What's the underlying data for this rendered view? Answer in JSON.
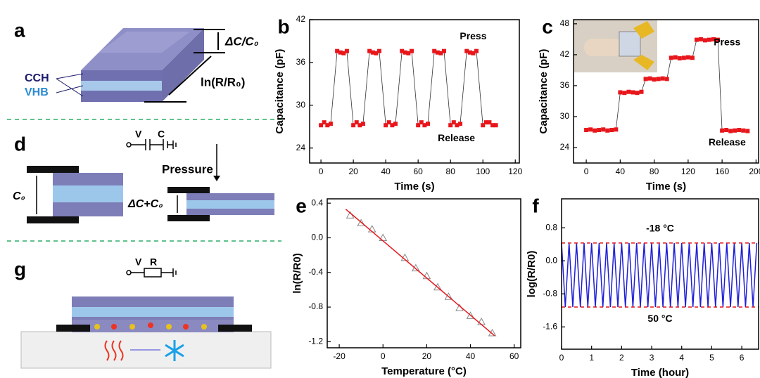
{
  "chart_data": [
    {
      "type": "line",
      "label": "b",
      "xlabel": "Time (s)",
      "ylabel": "Capacitance (pF)",
      "annotations": [
        "Press",
        "Release"
      ],
      "xlim": [
        -7,
        122.5
      ],
      "ylim": [
        21.9,
        42
      ],
      "xticks": [
        0,
        20,
        40,
        60,
        80,
        100,
        120
      ],
      "yticks": [
        24,
        30,
        36,
        42
      ],
      "series": [
        {
          "color": "#e8161b",
          "marker": "square",
          "line": true,
          "x": [
            0,
            2,
            4,
            6,
            10,
            12,
            14,
            16,
            20,
            22,
            24,
            26,
            30,
            32,
            34,
            36,
            40,
            42,
            44,
            46,
            50,
            52,
            54,
            56,
            60,
            62,
            64,
            66,
            70,
            72,
            74,
            76,
            80,
            82,
            84,
            86,
            90,
            92,
            94,
            96,
            100,
            102,
            104,
            106,
            108
          ],
          "values": [
            27.2,
            27.6,
            27.2,
            27.4,
            37.6,
            37.4,
            37.3,
            37.6,
            27.2,
            27.6,
            27.2,
            27.4,
            37.6,
            37.4,
            37.3,
            37.6,
            27.2,
            27.6,
            27.2,
            27.4,
            37.6,
            37.4,
            37.3,
            37.6,
            27.2,
            27.6,
            27.2,
            27.4,
            37.6,
            37.4,
            37.3,
            37.6,
            27.2,
            27.6,
            27.2,
            27.4,
            37.6,
            37.4,
            37.3,
            37.6,
            27.2,
            27.6,
            27.6,
            27.2,
            27.2
          ]
        }
      ]
    },
    {
      "type": "line",
      "label": "c",
      "xlabel": "Time (s)",
      "ylabel": "Capacitance (pF)",
      "annotations": [
        "Press",
        "Release"
      ],
      "xlim": [
        -15,
        203
      ],
      "ylim": [
        21,
        48.8
      ],
      "xticks": [
        0,
        40,
        80,
        120,
        160,
        200
      ],
      "yticks": [
        24,
        30,
        36,
        42,
        48
      ],
      "series": [
        {
          "color": "#e8161b",
          "marker": "square",
          "line": true,
          "x": [
            0,
            5,
            10,
            15,
            20,
            25,
            30,
            35,
            40,
            45,
            50,
            55,
            60,
            65,
            70,
            75,
            80,
            85,
            90,
            95,
            100,
            105,
            110,
            115,
            120,
            125,
            130,
            135,
            140,
            145,
            150,
            155,
            160,
            165,
            170,
            175,
            180,
            185,
            190
          ],
          "values": [
            27.4,
            27.5,
            27.3,
            27.4,
            27.5,
            27.3,
            27.4,
            27.5,
            34.7,
            34.6,
            34.8,
            34.7,
            34.6,
            34.8,
            37.3,
            37.4,
            37.2,
            37.3,
            37.4,
            37.3,
            41.4,
            41.5,
            41.3,
            41.4,
            41.5,
            41.4,
            44.9,
            45.0,
            44.8,
            44.9,
            45.0,
            44.9,
            27.3,
            27.4,
            27.2,
            27.3,
            27.4,
            27.3,
            27.2
          ]
        }
      ]
    },
    {
      "type": "scatter",
      "label": "e",
      "xlabel": "Temperature (°C)",
      "ylabel": "ln(R/R0)",
      "xlim": [
        -25.5,
        63
      ],
      "ylim": [
        -1.27,
        0.45
      ],
      "xticks": [
        -20,
        0,
        20,
        40,
        60
      ],
      "yticks": [
        -1.2,
        -0.8,
        -0.4,
        {
          "value": 0,
          "label": "0.0"
        },
        0.4
      ],
      "series": [
        {
          "color": "#888888",
          "marker": "triangle",
          "line": false,
          "x": [
            -15,
            -10,
            -5,
            0,
            10,
            15,
            20,
            25,
            30,
            35,
            40,
            45,
            50
          ],
          "values": [
            0.26,
            0.17,
            0.1,
            0.0,
            -0.23,
            -0.35,
            -0.44,
            -0.57,
            -0.68,
            -0.81,
            -0.9,
            -0.97,
            -1.1
          ]
        },
        {
          "color": "#e8161b",
          "line": true,
          "x": [
            -17,
            51
          ],
          "values": [
            0.33,
            -1.13
          ]
        }
      ]
    },
    {
      "type": "line",
      "label": "f",
      "xlabel": "Time (hour)",
      "ylabel": "log(R/R0)",
      "annotations": [
        "-18 °C",
        "50 °C"
      ],
      "xlim": [
        0,
        6.56
      ],
      "ylim": [
        -2.14,
        1.5
      ],
      "xticks": [
        0,
        1,
        2,
        3,
        4,
        5,
        6
      ],
      "yticks": [
        -1.6,
        -0.8,
        {
          "value": 0,
          "label": "0.0"
        },
        0.8
      ],
      "series": [
        {
          "color": "#1f1fd6",
          "line": true,
          "x": [
            0,
            0.125,
            0.25,
            0.375,
            0.5,
            0.625,
            0.75,
            0.875,
            1,
            1.125,
            1.25,
            1.375,
            1.5,
            1.625,
            1.75,
            1.875,
            2,
            2.125,
            2.25,
            2.375,
            2.5,
            2.625,
            2.75,
            2.875,
            3,
            3.125,
            3.25,
            3.375,
            3.5,
            3.625,
            3.75,
            3.875,
            4,
            4.125,
            4.25,
            4.375,
            4.5,
            4.625,
            4.75,
            4.875,
            5,
            5.125,
            5.25,
            5.375,
            5.5,
            5.625,
            5.75,
            5.875,
            6,
            6.125,
            6.25,
            6.375,
            6.5
          ],
          "values": [
            0.43,
            -1.12,
            0.43,
            -1.12,
            0.43,
            -1.12,
            0.43,
            -1.12,
            0.43,
            -1.12,
            0.43,
            -1.12,
            0.43,
            -1.12,
            0.43,
            -1.12,
            0.43,
            -1.12,
            0.43,
            -1.12,
            0.43,
            -1.12,
            0.43,
            -1.12,
            0.43,
            -1.12,
            0.43,
            -1.12,
            0.43,
            -1.12,
            0.43,
            -1.12,
            0.43,
            -1.12,
            0.43,
            -1.12,
            0.43,
            -1.12,
            0.43,
            -1.12,
            0.43,
            -1.12,
            0.43,
            -1.12,
            0.43,
            -1.12,
            0.43,
            -1.12,
            0.43,
            -1.12,
            0.43,
            -1.12,
            0.43
          ]
        },
        {
          "color": "#e8161b",
          "line": true,
          "dash": true,
          "x": [
            0,
            6.56
          ],
          "values": [
            0.43,
            0.43
          ]
        },
        {
          "color": "#e8161b",
          "line": true,
          "dash": true,
          "x": [
            0,
            6.56
          ],
          "values": [
            -1.12,
            -1.12
          ]
        }
      ]
    }
  ],
  "diagrams": {
    "a": {
      "letter": "a",
      "dc": "ΔC/C₀",
      "lnr": "ln(R/R₀)",
      "cch": "CCH",
      "vhb": "VHB"
    },
    "d": {
      "letter": "d",
      "v": "V",
      "c": "C",
      "pressure": "Pressure",
      "c0": "C₀",
      "dcc0": "ΔC+C₀"
    },
    "g": {
      "letter": "g",
      "v": "V",
      "r": "R"
    }
  }
}
